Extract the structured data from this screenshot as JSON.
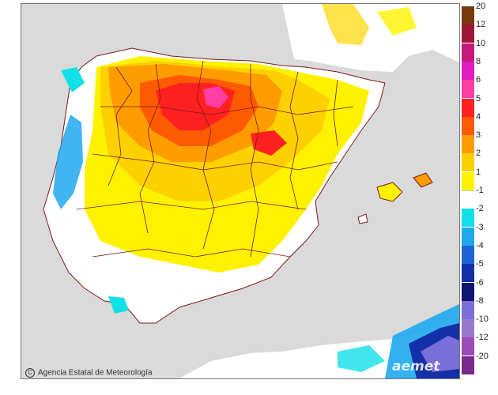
{
  "map": {
    "credit": "Agencia Estatal de Meteorología",
    "credit_mark": "C",
    "logo": "aemet"
  },
  "legend": {
    "items": [
      {
        "label": "20",
        "color": "#7a3a10"
      },
      {
        "label": "12",
        "color": "#a0163a"
      },
      {
        "label": "10",
        "color": "#c6177a"
      },
      {
        "label": "8",
        "color": "#e21bc2"
      },
      {
        "label": "6",
        "color": "#ff3ea4"
      },
      {
        "label": "5",
        "color": "#ff2020"
      },
      {
        "label": "4",
        "color": "#ff5a00"
      },
      {
        "label": "3",
        "color": "#ff9c00"
      },
      {
        "label": "2",
        "color": "#ffd000"
      },
      {
        "label": "1",
        "color": "#fff200"
      },
      {
        "label": "-1",
        "color": "#ffffff"
      },
      {
        "label": "-2",
        "color": "#12e0e8"
      },
      {
        "label": "-3",
        "color": "#1ea8ee"
      },
      {
        "label": "-4",
        "color": "#1c64d8"
      },
      {
        "label": "-5",
        "color": "#1430a8"
      },
      {
        "label": "-6",
        "color": "#0e1670"
      },
      {
        "label": "-8",
        "color": "#7a6ed8"
      },
      {
        "label": "-10",
        "color": "#9a78d0"
      },
      {
        "label": "-12",
        "color": "#9c4cba"
      },
      {
        "label": "-20",
        "color": "#7a2a8c"
      }
    ]
  }
}
